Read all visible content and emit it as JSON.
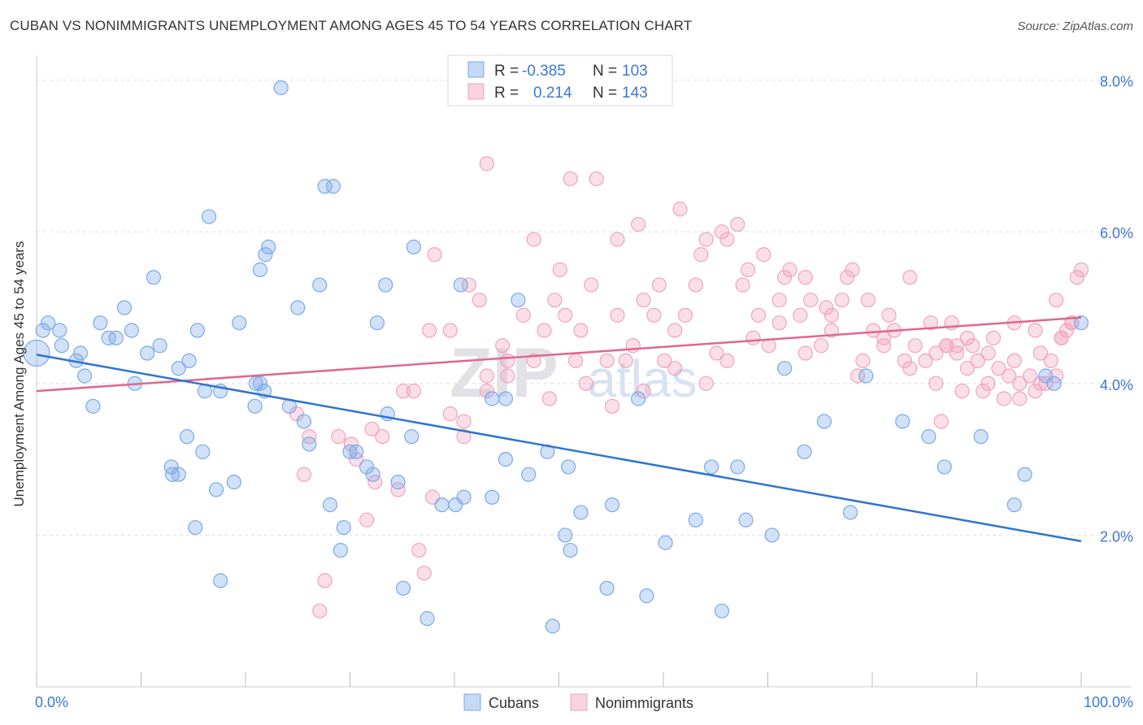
{
  "title": "CUBAN VS NONIMMIGRANTS UNEMPLOYMENT AMONG AGES 45 TO 54 YEARS CORRELATION CHART",
  "source": "Source: ZipAtlas.com",
  "watermark": {
    "zip": "ZIP",
    "atlas": "atlas"
  },
  "chart_data": {
    "type": "scatter",
    "title": "CUBAN VS NONIMMIGRANTS UNEMPLOYMENT AMONG AGES 45 TO 54 YEARS CORRELATION CHART",
    "xlabel": "",
    "ylabel": "Unemployment Among Ages 45 to 54 years",
    "xlim": [
      0,
      100
    ],
    "ylim": [
      0,
      8.2
    ],
    "x_tick_labels": {
      "min": "0.0%",
      "max": "100.0%"
    },
    "y_ticks": [
      {
        "value": 2,
        "label": "2.0%"
      },
      {
        "value": 4,
        "label": "4.0%"
      },
      {
        "value": 6,
        "label": "6.0%"
      },
      {
        "value": 8,
        "label": "8.0%"
      }
    ],
    "grid": true,
    "legend_position": "top-center",
    "series": [
      {
        "name": "Cubans",
        "color": "#7aaae8",
        "line_color": "#2f74d0",
        "r_label": "R =",
        "r_value": "-0.385",
        "n_label": "N =",
        "n_value": "103",
        "trend": {
          "x0": 0,
          "y0": 4.38,
          "x1": 100,
          "y1": 1.92
        },
        "points": [
          [
            0,
            4.4
          ],
          [
            1.1,
            4.8
          ],
          [
            2.2,
            4.7
          ],
          [
            0.6,
            4.7
          ],
          [
            4.2,
            4.4
          ],
          [
            2.4,
            4.5
          ],
          [
            3.8,
            4.3
          ],
          [
            7.6,
            4.6
          ],
          [
            4.6,
            4.1
          ],
          [
            9.1,
            4.7
          ],
          [
            6.1,
            4.8
          ],
          [
            6.9,
            4.6
          ],
          [
            8.4,
            5.0
          ],
          [
            10.6,
            4.4
          ],
          [
            11.2,
            5.4
          ],
          [
            9.4,
            4.0
          ],
          [
            5.4,
            3.7
          ],
          [
            11.8,
            4.5
          ],
          [
            13.6,
            4.2
          ],
          [
            14.6,
            4.3
          ],
          [
            15.4,
            4.7
          ],
          [
            17.6,
            3.9
          ],
          [
            20.9,
            3.7
          ],
          [
            16.1,
            3.9
          ],
          [
            12.9,
            2.9
          ],
          [
            14.4,
            3.3
          ],
          [
            13.6,
            2.8
          ],
          [
            13.0,
            2.8
          ],
          [
            15.2,
            2.1
          ],
          [
            15.9,
            3.1
          ],
          [
            17.2,
            2.6
          ],
          [
            18.9,
            2.7
          ],
          [
            16.5,
            6.2
          ],
          [
            22.2,
            5.8
          ],
          [
            19.4,
            4.8
          ],
          [
            17.6,
            1.4
          ],
          [
            21.4,
            4.0
          ],
          [
            21.8,
            3.9
          ],
          [
            21.0,
            4.0
          ],
          [
            21.9,
            5.7
          ],
          [
            24.2,
            3.7
          ],
          [
            21.4,
            5.5
          ],
          [
            23.4,
            7.9
          ],
          [
            25.6,
            3.5
          ],
          [
            26.1,
            3.2
          ],
          [
            25.0,
            5.0
          ],
          [
            27.1,
            5.3
          ],
          [
            27.6,
            6.6
          ],
          [
            28.4,
            6.6
          ],
          [
            28.1,
            2.4
          ],
          [
            29.1,
            1.8
          ],
          [
            29.4,
            2.1
          ],
          [
            30.0,
            3.1
          ],
          [
            30.6,
            3.1
          ],
          [
            31.6,
            2.9
          ],
          [
            32.2,
            2.8
          ],
          [
            32.6,
            4.8
          ],
          [
            33.6,
            3.6
          ],
          [
            34.6,
            2.7
          ],
          [
            33.4,
            5.3
          ],
          [
            35.1,
            1.3
          ],
          [
            35.9,
            3.3
          ],
          [
            36.1,
            5.8
          ],
          [
            37.4,
            0.9
          ],
          [
            38.8,
            2.4
          ],
          [
            40.1,
            2.4
          ],
          [
            40.9,
            2.5
          ],
          [
            40.6,
            5.3
          ],
          [
            43.6,
            3.8
          ],
          [
            43.6,
            2.5
          ],
          [
            44.9,
            3.8
          ],
          [
            44.9,
            3.0
          ],
          [
            46.1,
            5.1
          ],
          [
            47.1,
            2.8
          ],
          [
            48.9,
            3.1
          ],
          [
            49.4,
            0.8
          ],
          [
            52.1,
            2.3
          ],
          [
            50.9,
            2.9
          ],
          [
            51.1,
            1.8
          ],
          [
            50.6,
            2.0
          ],
          [
            55.1,
            2.4
          ],
          [
            54.6,
            1.3
          ],
          [
            58.4,
            1.2
          ],
          [
            57.6,
            3.8
          ],
          [
            63.1,
            2.2
          ],
          [
            60.2,
            1.9
          ],
          [
            64.6,
            2.9
          ],
          [
            65.6,
            1.0
          ],
          [
            67.9,
            2.2
          ],
          [
            67.1,
            2.9
          ],
          [
            70.4,
            2.0
          ],
          [
            71.6,
            4.2
          ],
          [
            73.5,
            3.1
          ],
          [
            75.4,
            3.5
          ],
          [
            77.9,
            2.3
          ],
          [
            79.4,
            4.1
          ],
          [
            82.9,
            3.5
          ],
          [
            86.9,
            2.9
          ],
          [
            85.4,
            3.3
          ],
          [
            90.4,
            3.3
          ],
          [
            93.6,
            2.4
          ],
          [
            94.6,
            2.8
          ],
          [
            96.6,
            4.1
          ],
          [
            97.4,
            4.0
          ],
          [
            100.0,
            4.8
          ]
        ]
      },
      {
        "name": "Nonimmigrants",
        "color": "#f1a3bd",
        "line_color": "#e06690",
        "r_label": "R =",
        "r_value": "0.214",
        "n_label": "N =",
        "n_value": "143",
        "trend": {
          "x0": 0,
          "y0": 3.9,
          "x1": 100,
          "y1": 4.87
        },
        "points": [
          [
            36.1,
            3.9
          ],
          [
            37.6,
            4.7
          ],
          [
            39.6,
            4.7
          ],
          [
            40.9,
            3.5
          ],
          [
            42.4,
            5.1
          ],
          [
            43.1,
            4.1
          ],
          [
            44.6,
            4.5
          ],
          [
            45.1,
            4.1
          ],
          [
            46.6,
            4.9
          ],
          [
            47.6,
            4.3
          ],
          [
            48.6,
            4.7
          ],
          [
            49.6,
            5.1
          ],
          [
            50.1,
            5.5
          ],
          [
            50.6,
            4.9
          ],
          [
            51.6,
            4.3
          ],
          [
            52.1,
            4.7
          ],
          [
            53.1,
            5.3
          ],
          [
            54.6,
            4.3
          ],
          [
            55.6,
            4.9
          ],
          [
            56.4,
            4.3
          ],
          [
            57.1,
            4.5
          ],
          [
            58.1,
            5.1
          ],
          [
            59.1,
            4.9
          ],
          [
            60.1,
            4.3
          ],
          [
            61.1,
            4.7
          ],
          [
            62.1,
            4.9
          ],
          [
            63.1,
            5.3
          ],
          [
            64.1,
            5.9
          ],
          [
            65.1,
            4.4
          ],
          [
            66.1,
            5.9
          ],
          [
            67.1,
            6.1
          ],
          [
            68.1,
            5.5
          ],
          [
            69.1,
            4.9
          ],
          [
            70.1,
            4.5
          ],
          [
            71.1,
            5.1
          ],
          [
            72.1,
            5.5
          ],
          [
            73.1,
            4.9
          ],
          [
            74.1,
            5.1
          ],
          [
            75.1,
            4.5
          ],
          [
            76.1,
            4.9
          ],
          [
            77.1,
            5.1
          ],
          [
            78.1,
            5.5
          ],
          [
            79.1,
            4.3
          ],
          [
            80.1,
            4.7
          ],
          [
            81.1,
            4.5
          ],
          [
            82.1,
            4.7
          ],
          [
            83.1,
            4.3
          ],
          [
            84.1,
            4.5
          ],
          [
            85.1,
            4.3
          ],
          [
            86.1,
            4.4
          ],
          [
            87.1,
            4.5
          ],
          [
            88.1,
            4.4
          ],
          [
            89.1,
            4.2
          ],
          [
            90.1,
            4.3
          ],
          [
            91.1,
            4.0
          ],
          [
            92.1,
            4.2
          ],
          [
            93.1,
            4.1
          ],
          [
            94.1,
            4.0
          ],
          [
            95.1,
            4.1
          ],
          [
            96.1,
            4.0
          ],
          [
            97.1,
            4.3
          ],
          [
            98.1,
            4.6
          ],
          [
            99.1,
            4.8
          ],
          [
            100.0,
            5.5
          ],
          [
            38.1,
            5.7
          ],
          [
            41.4,
            5.3
          ],
          [
            43.1,
            6.9
          ],
          [
            47.6,
            5.9
          ],
          [
            51.1,
            6.7
          ],
          [
            53.6,
            6.7
          ],
          [
            55.6,
            5.9
          ],
          [
            57.6,
            6.1
          ],
          [
            59.6,
            5.3
          ],
          [
            61.6,
            6.3
          ],
          [
            63.6,
            5.7
          ],
          [
            65.6,
            6.0
          ],
          [
            67.6,
            5.3
          ],
          [
            69.6,
            5.7
          ],
          [
            71.6,
            5.4
          ],
          [
            73.6,
            5.4
          ],
          [
            75.6,
            5.0
          ],
          [
            77.6,
            5.4
          ],
          [
            79.6,
            5.1
          ],
          [
            81.6,
            4.9
          ],
          [
            83.6,
            5.4
          ],
          [
            85.6,
            4.8
          ],
          [
            87.6,
            4.8
          ],
          [
            89.6,
            4.5
          ],
          [
            91.6,
            4.6
          ],
          [
            93.6,
            4.8
          ],
          [
            95.6,
            4.7
          ],
          [
            97.6,
            5.1
          ],
          [
            99.6,
            5.4
          ],
          [
            43.1,
            3.9
          ],
          [
            45.1,
            4.3
          ],
          [
            49.1,
            3.8
          ],
          [
            52.6,
            4.0
          ],
          [
            55.1,
            3.7
          ],
          [
            58.1,
            3.9
          ],
          [
            61.1,
            4.2
          ],
          [
            64.1,
            4.0
          ],
          [
            66.1,
            4.3
          ],
          [
            68.6,
            4.6
          ],
          [
            71.1,
            4.8
          ],
          [
            73.6,
            4.4
          ],
          [
            76.1,
            4.7
          ],
          [
            78.6,
            4.1
          ],
          [
            81.1,
            4.6
          ],
          [
            83.6,
            4.2
          ],
          [
            86.1,
            4.0
          ],
          [
            88.6,
            3.9
          ],
          [
            91.1,
            4.4
          ],
          [
            93.6,
            4.3
          ],
          [
            96.1,
            4.4
          ],
          [
            98.6,
            4.7
          ],
          [
            36.6,
            1.8
          ],
          [
            37.1,
            1.5
          ],
          [
            37.9,
            2.5
          ],
          [
            39.6,
            3.6
          ],
          [
            40.9,
            3.3
          ],
          [
            34.6,
            2.6
          ],
          [
            32.4,
            2.7
          ],
          [
            31.6,
            2.2
          ],
          [
            30.6,
            3.0
          ],
          [
            30.1,
            3.2
          ],
          [
            28.9,
            3.3
          ],
          [
            27.6,
            1.4
          ],
          [
            27.1,
            1.0
          ],
          [
            26.1,
            3.3
          ],
          [
            25.6,
            2.8
          ],
          [
            24.9,
            3.6
          ],
          [
            32.1,
            3.4
          ],
          [
            33.1,
            3.3
          ],
          [
            35.1,
            3.9
          ],
          [
            86.6,
            3.5
          ],
          [
            90.6,
            3.9
          ],
          [
            92.6,
            3.8
          ],
          [
            94.1,
            3.8
          ],
          [
            95.6,
            3.9
          ],
          [
            96.6,
            4.0
          ],
          [
            97.6,
            4.1
          ],
          [
            98.1,
            4.6
          ],
          [
            99.1,
            4.8
          ],
          [
            87.1,
            4.5
          ],
          [
            88.1,
            4.5
          ],
          [
            89.1,
            4.6
          ]
        ]
      }
    ]
  },
  "legend_bottom": [
    {
      "label": "Cubans"
    },
    {
      "label": "Nonimmigrants"
    }
  ]
}
